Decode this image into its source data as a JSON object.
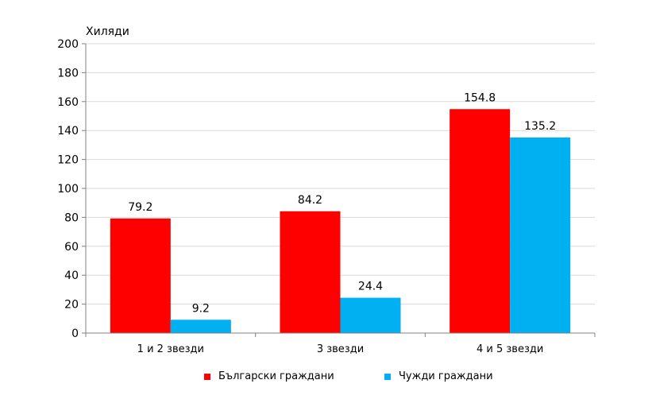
{
  "chart_data": {
    "type": "bar",
    "ylabel": "Хиляди",
    "categories": [
      "1 и 2 звезди",
      "3 звезди",
      "4 и 5 звезди"
    ],
    "series": [
      {
        "name": "Български граждани",
        "color": "#ff0000",
        "values": [
          79.2,
          84.2,
          154.8
        ],
        "labels": [
          "79.2",
          "84.2",
          "154.8"
        ]
      },
      {
        "name": "Чужди граждани",
        "color": "#00b0f0",
        "values": [
          9.2,
          24.4,
          135.2
        ],
        "labels": [
          "9.2",
          "24.4",
          "135.2"
        ]
      }
    ],
    "ylim": [
      0,
      200
    ],
    "yticks": [
      0,
      20,
      40,
      60,
      80,
      100,
      120,
      140,
      160,
      180,
      200
    ],
    "grid": true,
    "legend": "bottom"
  }
}
